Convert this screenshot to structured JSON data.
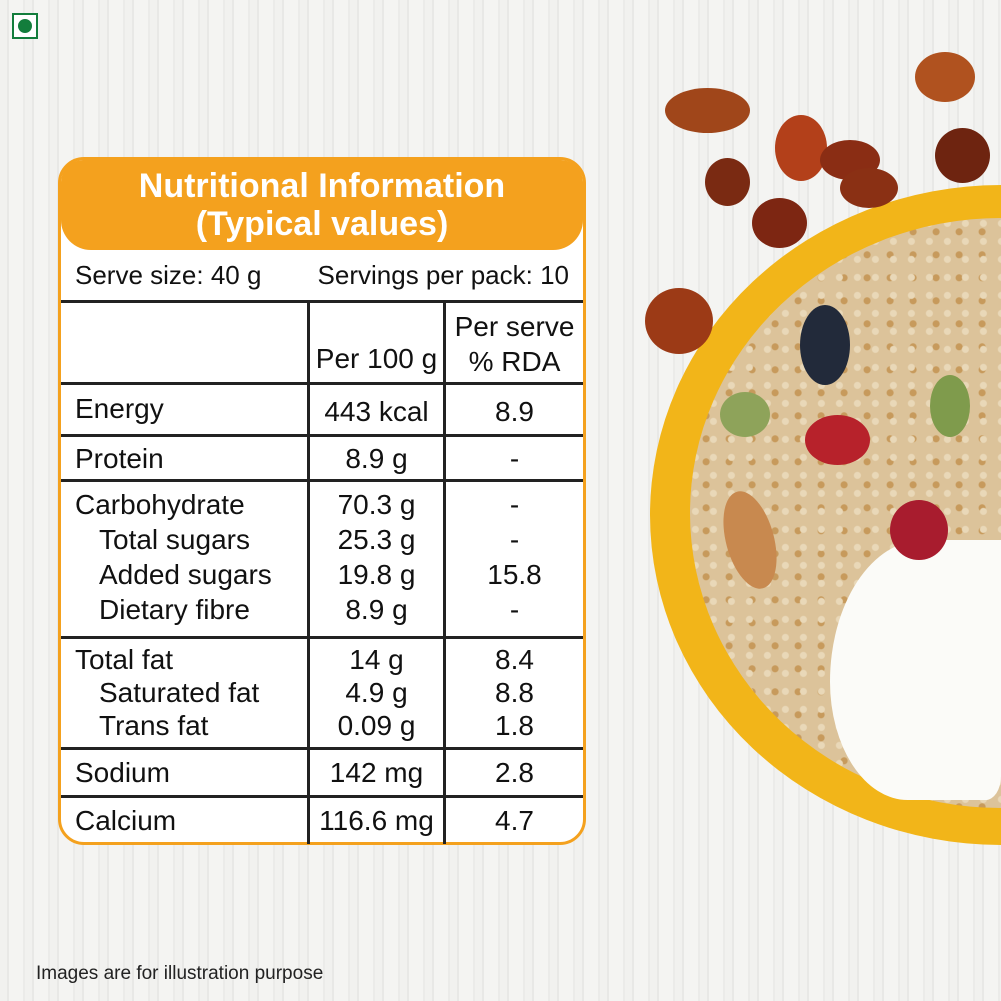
{
  "badge": {
    "icon": "veg-mark-icon",
    "color": "#137d3c"
  },
  "label": {
    "title_line1": "Nutritional Information",
    "title_line2": "(Typical values)",
    "serve_size": "Serve size: 40 g",
    "servings_per_pack": "Servings per pack: 10",
    "col_per100": "Per 100 g",
    "col_rda_line1": "Per serve",
    "col_rda_line2": "% RDA",
    "accent_color": "#f4a11e",
    "rows": [
      {
        "name": "Energy",
        "per100": "443 kcal",
        "rda": "8.9"
      },
      {
        "name": "Protein",
        "per100": "8.9 g",
        "rda": "-"
      },
      {
        "name": "Carbohydrate",
        "per100": "70.3 g",
        "rda": "-"
      },
      {
        "name": "Total sugars",
        "per100": "25.3 g",
        "rda": "-"
      },
      {
        "name": "Added sugars",
        "per100": "19.8 g",
        "rda": "15.8"
      },
      {
        "name": "Dietary fibre",
        "per100": "8.9 g",
        "rda": "-"
      },
      {
        "name": "Total fat",
        "per100": "14 g",
        "rda": "8.4"
      },
      {
        "name": "Saturated fat",
        "per100": "4.9 g",
        "rda": "8.8"
      },
      {
        "name": "Trans fat",
        "per100": "0.09 g",
        "rda": "1.8"
      },
      {
        "name": "Sodium",
        "per100": "142 mg",
        "rda": "2.8"
      },
      {
        "name": "Calcium",
        "per100": "116.6 mg",
        "rda": "4.7"
      }
    ]
  },
  "footer": "Images are for illustration purpose"
}
